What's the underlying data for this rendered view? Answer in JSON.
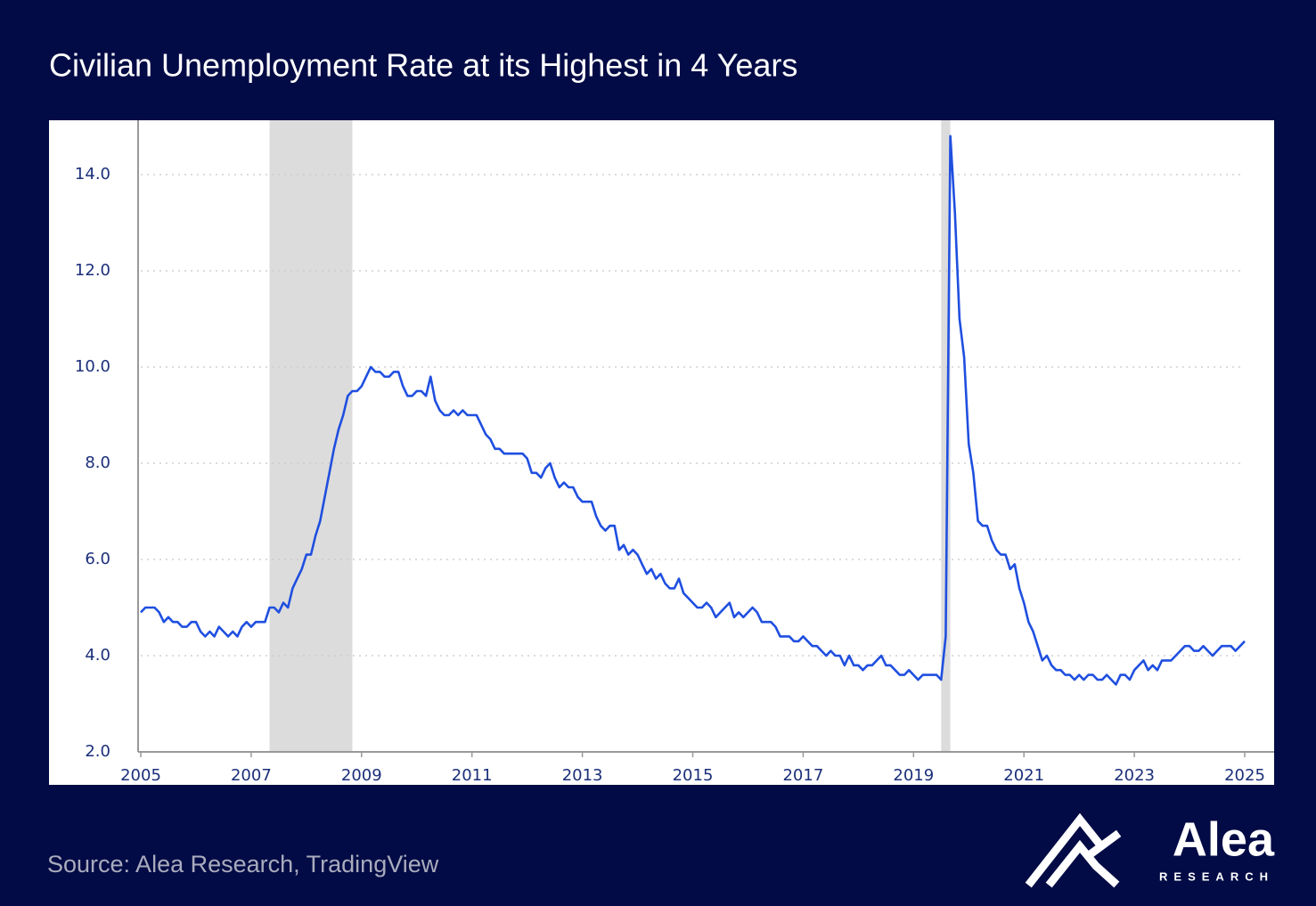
{
  "chart_data": {
    "type": "line",
    "title": "Civilian Unemployment Rate at its Highest in 4 Years",
    "color": "#1f4fe0",
    "grid": true,
    "xlim": [
      2005,
      2025
    ],
    "xticks": [
      2005,
      2007,
      2009,
      2011,
      2013,
      2015,
      2017,
      2019,
      2021,
      2023,
      2025
    ],
    "ylim": [
      2,
      15.1
    ],
    "yticks": [
      {
        "value": 2,
        "label": "2.0"
      },
      {
        "value": 4,
        "label": "4.0"
      },
      {
        "value": 6,
        "label": "6.0"
      },
      {
        "value": 8,
        "label": "8.0"
      },
      {
        "value": 10,
        "label": "10.0"
      },
      {
        "value": 12,
        "label": "12.0"
      },
      {
        "value": 14,
        "label": "14.0"
      }
    ],
    "recessions": [
      [
        2007.333,
        2008.833
      ],
      [
        2019.5,
        2019.667
      ]
    ],
    "x": [
      2005,
      2005.083,
      2005.167,
      2005.25,
      2005.333,
      2005.417,
      2005.5,
      2005.583,
      2005.667,
      2005.75,
      2005.833,
      2005.917,
      2006,
      2006.083,
      2006.167,
      2006.25,
      2006.333,
      2006.417,
      2006.5,
      2006.583,
      2006.667,
      2006.75,
      2006.833,
      2006.917,
      2007,
      2007.083,
      2007.167,
      2007.25,
      2007.333,
      2007.417,
      2007.5,
      2007.583,
      2007.667,
      2007.75,
      2007.833,
      2007.917,
      2008,
      2008.083,
      2008.167,
      2008.25,
      2008.333,
      2008.417,
      2008.5,
      2008.583,
      2008.667,
      2008.75,
      2008.833,
      2008.917,
      2009,
      2009.083,
      2009.167,
      2009.25,
      2009.333,
      2009.417,
      2009.5,
      2009.583,
      2009.667,
      2009.75,
      2009.833,
      2009.917,
      2010,
      2010.083,
      2010.167,
      2010.25,
      2010.333,
      2010.417,
      2010.5,
      2010.583,
      2010.667,
      2010.75,
      2010.833,
      2010.917,
      2011,
      2011.083,
      2011.167,
      2011.25,
      2011.333,
      2011.417,
      2011.5,
      2011.583,
      2011.667,
      2011.75,
      2011.833,
      2011.917,
      2012,
      2012.083,
      2012.167,
      2012.25,
      2012.333,
      2012.417,
      2012.5,
      2012.583,
      2012.667,
      2012.75,
      2012.833,
      2012.917,
      2013,
      2013.083,
      2013.167,
      2013.25,
      2013.333,
      2013.417,
      2013.5,
      2013.583,
      2013.667,
      2013.75,
      2013.833,
      2013.917,
      2014,
      2014.083,
      2014.167,
      2014.25,
      2014.333,
      2014.417,
      2014.5,
      2014.583,
      2014.667,
      2014.75,
      2014.833,
      2014.917,
      2015,
      2015.083,
      2015.167,
      2015.25,
      2015.333,
      2015.417,
      2015.5,
      2015.583,
      2015.667,
      2015.75,
      2015.833,
      2015.917,
      2016,
      2016.083,
      2016.167,
      2016.25,
      2016.333,
      2016.417,
      2016.5,
      2016.583,
      2016.667,
      2016.75,
      2016.833,
      2016.917,
      2017,
      2017.083,
      2017.167,
      2017.25,
      2017.333,
      2017.417,
      2017.5,
      2017.583,
      2017.667,
      2017.75,
      2017.833,
      2017.917,
      2018,
      2018.083,
      2018.167,
      2018.25,
      2018.333,
      2018.417,
      2018.5,
      2018.583,
      2018.667,
      2018.75,
      2018.833,
      2018.917,
      2019,
      2019.083,
      2019.167,
      2019.25,
      2019.333,
      2019.417,
      2019.5,
      2019.583,
      2019.667,
      2019.75,
      2019.833,
      2019.917,
      2020,
      2020.083,
      2020.167,
      2020.25,
      2020.333,
      2020.417,
      2020.5,
      2020.583,
      2020.667,
      2020.75,
      2020.833,
      2020.917,
      2021,
      2021.083,
      2021.167,
      2021.25,
      2021.333,
      2021.417,
      2021.5,
      2021.583,
      2021.667,
      2021.75,
      2021.833,
      2021.917,
      2022,
      2022.083,
      2022.167,
      2022.25,
      2022.333,
      2022.417,
      2022.5,
      2022.583,
      2022.667,
      2022.75,
      2022.833,
      2022.917,
      2023,
      2023.083,
      2023.167,
      2023.25,
      2023.333,
      2023.417,
      2023.5,
      2023.583,
      2023.667,
      2023.75,
      2023.833,
      2023.917,
      2024,
      2024.083,
      2024.167,
      2024.25,
      2024.333,
      2024.417,
      2024.5,
      2024.583,
      2024.667,
      2024.75,
      2024.833,
      2024.917,
      2025
    ],
    "values": [
      4.9,
      5.0,
      5.0,
      5.0,
      4.9,
      4.7,
      4.8,
      4.7,
      4.7,
      4.6,
      4.6,
      4.7,
      4.7,
      4.5,
      4.4,
      4.5,
      4.4,
      4.6,
      4.5,
      4.4,
      4.5,
      4.4,
      4.6,
      4.7,
      4.6,
      4.7,
      4.7,
      4.7,
      5.0,
      5.0,
      4.9,
      5.1,
      5.0,
      5.4,
      5.6,
      5.8,
      6.1,
      6.1,
      6.5,
      6.8,
      7.3,
      7.8,
      8.3,
      8.7,
      9.0,
      9.4,
      9.5,
      9.5,
      9.6,
      9.8,
      10.0,
      9.9,
      9.9,
      9.8,
      9.8,
      9.9,
      9.9,
      9.6,
      9.4,
      9.4,
      9.5,
      9.5,
      9.4,
      9.8,
      9.3,
      9.1,
      9.0,
      9.0,
      9.1,
      9.0,
      9.1,
      9.0,
      9.0,
      9.0,
      8.8,
      8.6,
      8.5,
      8.3,
      8.3,
      8.2,
      8.2,
      8.2,
      8.2,
      8.2,
      8.1,
      7.8,
      7.8,
      7.7,
      7.9,
      8.0,
      7.7,
      7.5,
      7.6,
      7.5,
      7.5,
      7.3,
      7.2,
      7.2,
      7.2,
      6.9,
      6.7,
      6.6,
      6.7,
      6.7,
      6.2,
      6.3,
      6.1,
      6.2,
      6.1,
      5.9,
      5.7,
      5.8,
      5.6,
      5.7,
      5.5,
      5.4,
      5.4,
      5.6,
      5.3,
      5.2,
      5.1,
      5.0,
      5.0,
      5.1,
      5.0,
      4.8,
      4.9,
      5.0,
      5.1,
      4.8,
      4.9,
      4.8,
      4.9,
      5.0,
      4.9,
      4.7,
      4.7,
      4.7,
      4.6,
      4.4,
      4.4,
      4.4,
      4.3,
      4.3,
      4.4,
      4.3,
      4.2,
      4.2,
      4.1,
      4.0,
      4.1,
      4.0,
      4.0,
      3.8,
      4.0,
      3.8,
      3.8,
      3.7,
      3.8,
      3.8,
      3.9,
      4.0,
      3.8,
      3.8,
      3.7,
      3.6,
      3.6,
      3.7,
      3.6,
      3.5,
      3.6,
      3.6,
      3.6,
      3.6,
      3.5,
      4.4,
      14.8,
      13.2,
      11.0,
      10.2,
      8.4,
      7.8,
      6.8,
      6.7,
      6.7,
      6.4,
      6.2,
      6.1,
      6.1,
      5.8,
      5.9,
      5.4,
      5.1,
      4.7,
      4.5,
      4.2,
      3.9,
      4.0,
      3.8,
      3.7,
      3.7,
      3.6,
      3.6,
      3.5,
      3.6,
      3.5,
      3.6,
      3.6,
      3.5,
      3.5,
      3.6,
      3.5,
      3.4,
      3.6,
      3.6,
      3.5,
      3.7,
      3.8,
      3.9,
      3.7,
      3.8,
      3.7,
      3.9,
      3.9,
      3.9,
      4.0,
      4.1,
      4.2,
      4.2,
      4.1,
      4.1,
      4.2,
      4.1,
      4.0,
      4.1,
      4.2,
      4.2,
      4.2,
      4.1,
      4.2,
      4.3
    ]
  },
  "footer": {
    "source": "Source: Alea Research, TradingView",
    "brand": "Alea",
    "tagline": "RESEARCH"
  }
}
